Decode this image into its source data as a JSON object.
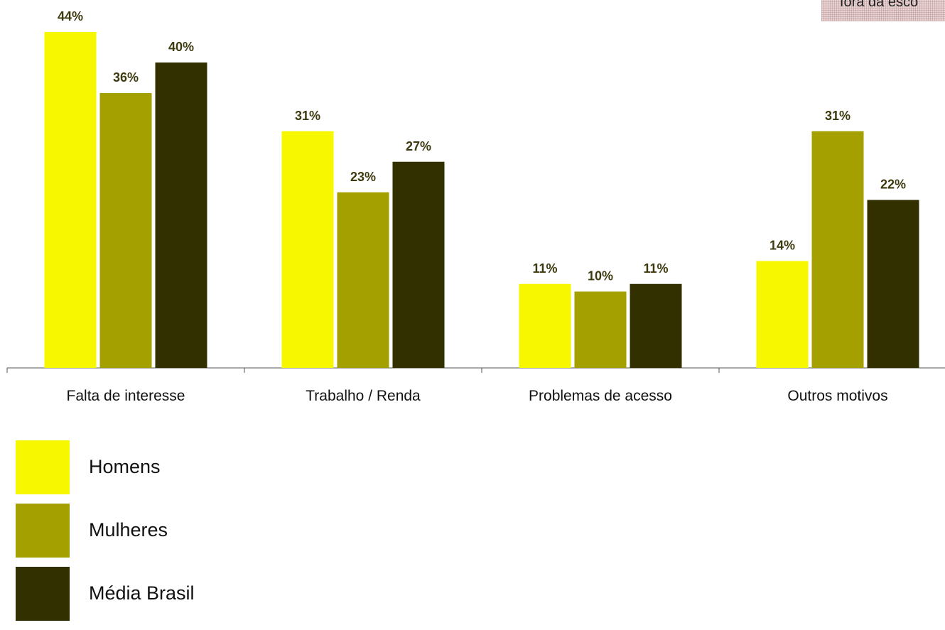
{
  "corner_note": "fora da esco",
  "chart_data": {
    "type": "bar",
    "categories": [
      "Falta de interesse",
      "Trabalho / Renda",
      "Problemas de acesso",
      "Outros motivos"
    ],
    "series": [
      {
        "name": "Homens",
        "values": [
          44,
          31,
          11,
          14
        ],
        "color": "#f7f700"
      },
      {
        "name": "Mulheres",
        "values": [
          36,
          23,
          10,
          31
        ],
        "color": "#a3a000"
      },
      {
        "name": "Média Brasil",
        "values": [
          40,
          27,
          11,
          22
        ],
        "color": "#333000"
      }
    ],
    "value_suffix": "%",
    "data_labels": true,
    "data_label_color": "#3d3a10",
    "ylim": [
      0,
      44
    ],
    "y_axis_visible": false,
    "grid": false,
    "legend": "bottom-left",
    "title": "",
    "xlabel": "",
    "ylabel": ""
  }
}
